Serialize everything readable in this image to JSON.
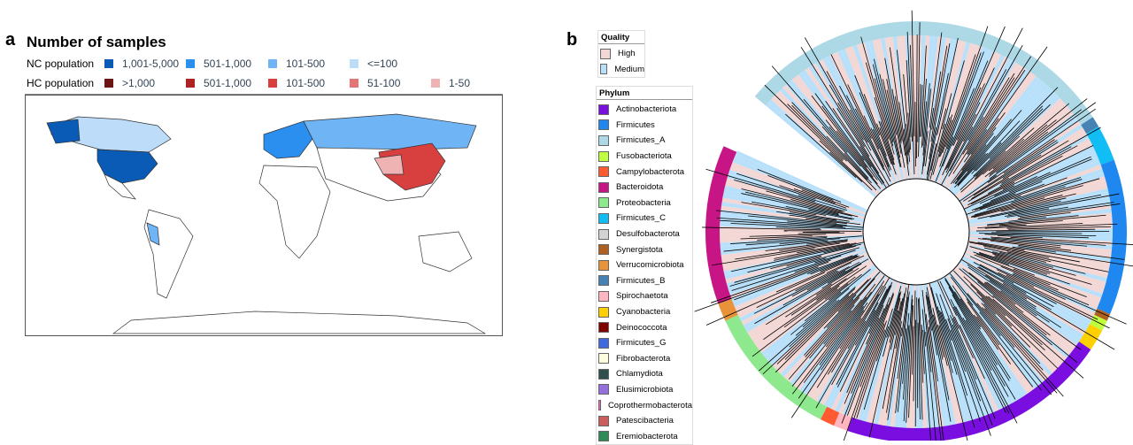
{
  "panel_a": {
    "label": "a",
    "title": "Number of samples",
    "nc": {
      "label": "NC population",
      "bins": [
        {
          "t": "1,001-5,000",
          "c": "#0a5bb5"
        },
        {
          "t": "501-1,000",
          "c": "#2b8ff0"
        },
        {
          "t": "101-500",
          "c": "#6fb4f5"
        },
        {
          "t": "<=100",
          "c": "#bcdcfa"
        }
      ]
    },
    "hc": {
      "label": "HC population",
      "bins": [
        {
          "t": ">1,000",
          "c": "#6b1515"
        },
        {
          "t": "501-1,000",
          "c": "#ad2222"
        },
        {
          "t": "101-500",
          "c": "#d84040"
        },
        {
          "t": "51-100",
          "c": "#e57575"
        },
        {
          "t": "1-50",
          "c": "#f0b3b3"
        }
      ]
    }
  },
  "panel_b": {
    "label": "b",
    "quality": {
      "title": "Quality",
      "items": [
        {
          "t": "High",
          "c": "#f2d7d5"
        },
        {
          "t": "Medium",
          "c": "#b8e0fa"
        }
      ]
    },
    "phylum": {
      "title": "Phylum",
      "items": [
        {
          "t": "Actinobacteriota",
          "c": "#7a0de0"
        },
        {
          "t": "Firmicutes",
          "c": "#1e88f0"
        },
        {
          "t": "Firmicutes_A",
          "c": "#add8e6"
        },
        {
          "t": "Fusobacteriota",
          "c": "#c0ff3e"
        },
        {
          "t": "Campylobacterota",
          "c": "#ff5a30"
        },
        {
          "t": "Bacteroidota",
          "c": "#c71585"
        },
        {
          "t": "Proteobacteria",
          "c": "#8ee88e"
        },
        {
          "t": "Firmicutes_C",
          "c": "#10bdf5"
        },
        {
          "t": "Desulfobacterota",
          "c": "#d3d3d3"
        },
        {
          "t": "Synergistota",
          "c": "#b0601e"
        },
        {
          "t": "Verrucomicrobiota",
          "c": "#e8923a"
        },
        {
          "t": "Firmicutes_B",
          "c": "#4682b4"
        },
        {
          "t": "Spirochaetota",
          "c": "#ffb6c1"
        },
        {
          "t": "Cyanobacteria",
          "c": "#ffd000"
        },
        {
          "t": "Deinococcota",
          "c": "#800000"
        },
        {
          "t": "Firmicutes_G",
          "c": "#4169e1"
        },
        {
          "t": "Fibrobacterota",
          "c": "#ffffe0"
        },
        {
          "t": "Chlamydiota",
          "c": "#2f4f4f"
        },
        {
          "t": "Elusimicrobiota",
          "c": "#9370db"
        },
        {
          "t": "Coprothermobacterota",
          "c": "#ff5fc8"
        },
        {
          "t": "Patescibacteria",
          "c": "#cd5c5c"
        },
        {
          "t": "Eremiobacterota",
          "c": "#2e8b57"
        }
      ]
    }
  }
}
